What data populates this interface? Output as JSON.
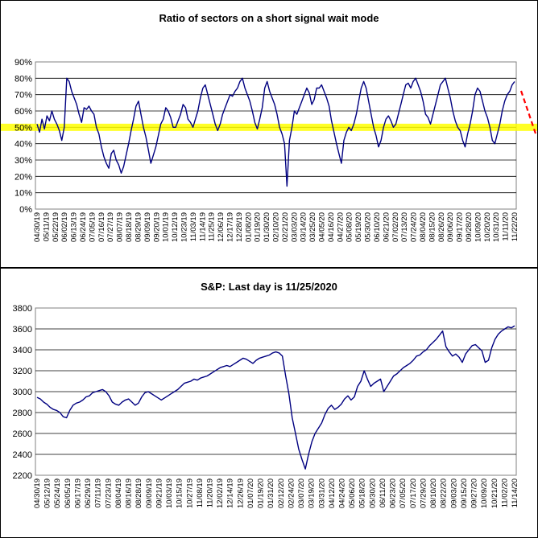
{
  "chart_data": [
    {
      "type": "line",
      "title": "Ratio of sectors on a short signal wait mode",
      "xlabel": "",
      "ylabel": "",
      "ylim": [
        0,
        90
      ],
      "y_tick_labels": [
        "0%",
        "10%",
        "20%",
        "30%",
        "40%",
        "50%",
        "60%",
        "70%",
        "80%",
        "90%"
      ],
      "x_tick_labels": [
        "04/30/19",
        "05/11/19",
        "05/22/19",
        "06/02/19",
        "06/13/19",
        "06/24/19",
        "07/05/19",
        "07/16/19",
        "07/27/19",
        "08/07/19",
        "08/18/19",
        "08/29/19",
        "09/09/19",
        "09/20/19",
        "10/01/19",
        "10/12/19",
        "10/23/19",
        "11/03/19",
        "11/14/19",
        "11/25/19",
        "12/06/19",
        "12/17/19",
        "12/28/19",
        "01/08/20",
        "01/19/20",
        "01/30/20",
        "02/10/20",
        "02/21/20",
        "03/03/20",
        "03/14/20",
        "03/25/20",
        "04/05/20",
        "04/16/20",
        "04/27/20",
        "05/08/20",
        "05/19/20",
        "05/30/20",
        "06/10/20",
        "06/21/20",
        "07/02/20",
        "07/13/20",
        "07/24/20",
        "08/04/20",
        "08/15/20",
        "08/26/20",
        "09/06/20",
        "09/17/20",
        "09/28/20",
        "10/09/20",
        "10/20/20",
        "10/31/20",
        "11/11/20",
        "11/22/20"
      ],
      "grid": true,
      "reference_line": {
        "value": 50,
        "color": "#ffff00"
      },
      "annotation_arrow_color": "#ff0000",
      "series_color": "#000080",
      "series": [
        {
          "values": [
            52,
            47,
            55,
            49,
            57,
            54,
            60,
            55,
            52,
            48,
            42,
            50,
            80,
            78,
            72,
            68,
            64,
            58,
            53,
            62,
            61,
            63,
            60,
            58,
            50,
            46,
            38,
            32,
            28,
            25,
            34,
            36,
            30,
            27,
            22,
            26,
            33,
            40,
            48,
            55,
            63,
            66,
            58,
            50,
            44,
            36,
            28,
            33,
            38,
            45,
            52,
            55,
            62,
            60,
            56,
            50,
            50,
            54,
            58,
            64,
            62,
            55,
            53,
            50,
            55,
            60,
            68,
            74,
            76,
            70,
            64,
            58,
            52,
            48,
            52,
            58,
            62,
            66,
            70,
            69,
            72,
            74,
            78,
            80,
            74,
            70,
            66,
            60,
            53,
            49,
            55,
            62,
            74,
            78,
            72,
            68,
            64,
            58,
            50,
            46,
            40,
            14,
            42,
            50,
            60,
            58,
            62,
            66,
            70,
            74,
            71,
            64,
            67,
            74,
            74,
            76,
            72,
            68,
            63,
            54,
            47,
            40,
            34,
            28,
            42,
            47,
            50,
            48,
            52,
            58,
            66,
            74,
            78,
            74,
            66,
            58,
            50,
            45,
            38,
            42,
            50,
            55,
            57,
            54,
            50,
            52,
            58,
            64,
            70,
            76,
            77,
            74,
            78,
            80,
            76,
            72,
            66,
            58,
            56,
            52,
            58,
            64,
            70,
            76,
            78,
            80,
            74,
            68,
            60,
            54,
            50,
            48,
            42,
            38,
            46,
            52,
            60,
            70,
            74,
            72,
            66,
            60,
            56,
            50,
            42,
            40,
            46,
            52,
            60,
            66,
            70,
            72,
            76,
            78
          ],
          "unit": "%"
        }
      ]
    },
    {
      "type": "line",
      "title": "S&P: Last day is 11/25/2020",
      "xlabel": "",
      "ylabel": "",
      "ylim": [
        2200,
        3800
      ],
      "y_tick_labels": [
        "2200",
        "2400",
        "2600",
        "2800",
        "3000",
        "3200",
        "3400",
        "3600",
        "3800"
      ],
      "x_tick_labels": [
        "04/30/19",
        "05/12/19",
        "05/24/19",
        "06/05/19",
        "06/17/19",
        "06/29/19",
        "07/11/19",
        "07/23/19",
        "08/04/19",
        "08/16/19",
        "08/28/19",
        "09/09/19",
        "09/21/19",
        "10/03/19",
        "10/15/19",
        "10/27/19",
        "11/08/19",
        "11/20/19",
        "12/02/19",
        "12/14/19",
        "12/26/19",
        "01/07/20",
        "01/19/20",
        "01/31/20",
        "02/12/20",
        "02/24/20",
        "03/07/20",
        "03/19/20",
        "03/31/20",
        "04/12/20",
        "04/24/20",
        "05/06/20",
        "05/18/20",
        "05/30/20",
        "06/11/20",
        "06/23/20",
        "07/05/20",
        "07/17/20",
        "07/29/20",
        "08/10/20",
        "08/22/20",
        "09/03/20",
        "09/15/20",
        "09/27/20",
        "10/09/20",
        "10/21/20",
        "11/02/20",
        "11/14/20"
      ],
      "grid": true,
      "series_color": "#000080",
      "series": [
        {
          "values": [
            2945,
            2930,
            2900,
            2880,
            2850,
            2830,
            2820,
            2800,
            2760,
            2750,
            2820,
            2870,
            2890,
            2900,
            2920,
            2950,
            2960,
            2990,
            3000,
            3010,
            3020,
            3000,
            2960,
            2900,
            2880,
            2870,
            2900,
            2920,
            2930,
            2900,
            2870,
            2890,
            2950,
            2990,
            3000,
            2980,
            2960,
            2940,
            2920,
            2940,
            2960,
            2980,
            3000,
            3020,
            3050,
            3080,
            3090,
            3100,
            3120,
            3110,
            3130,
            3140,
            3150,
            3170,
            3190,
            3210,
            3230,
            3240,
            3250,
            3240,
            3260,
            3280,
            3300,
            3320,
            3310,
            3290,
            3270,
            3300,
            3320,
            3330,
            3340,
            3350,
            3370,
            3380,
            3370,
            3340,
            3150,
            2980,
            2750,
            2600,
            2450,
            2350,
            2260,
            2400,
            2520,
            2600,
            2650,
            2700,
            2780,
            2840,
            2870,
            2830,
            2850,
            2880,
            2930,
            2960,
            2920,
            2950,
            3050,
            3100,
            3200,
            3120,
            3050,
            3080,
            3100,
            3120,
            3000,
            3050,
            3100,
            3150,
            3170,
            3200,
            3230,
            3250,
            3270,
            3300,
            3340,
            3350,
            3380,
            3400,
            3440,
            3470,
            3500,
            3540,
            3580,
            3430,
            3380,
            3340,
            3360,
            3330,
            3280,
            3360,
            3400,
            3440,
            3450,
            3420,
            3390,
            3280,
            3300,
            3420,
            3500,
            3550,
            3580,
            3600,
            3620,
            3610,
            3630
          ]
        }
      ]
    }
  ]
}
